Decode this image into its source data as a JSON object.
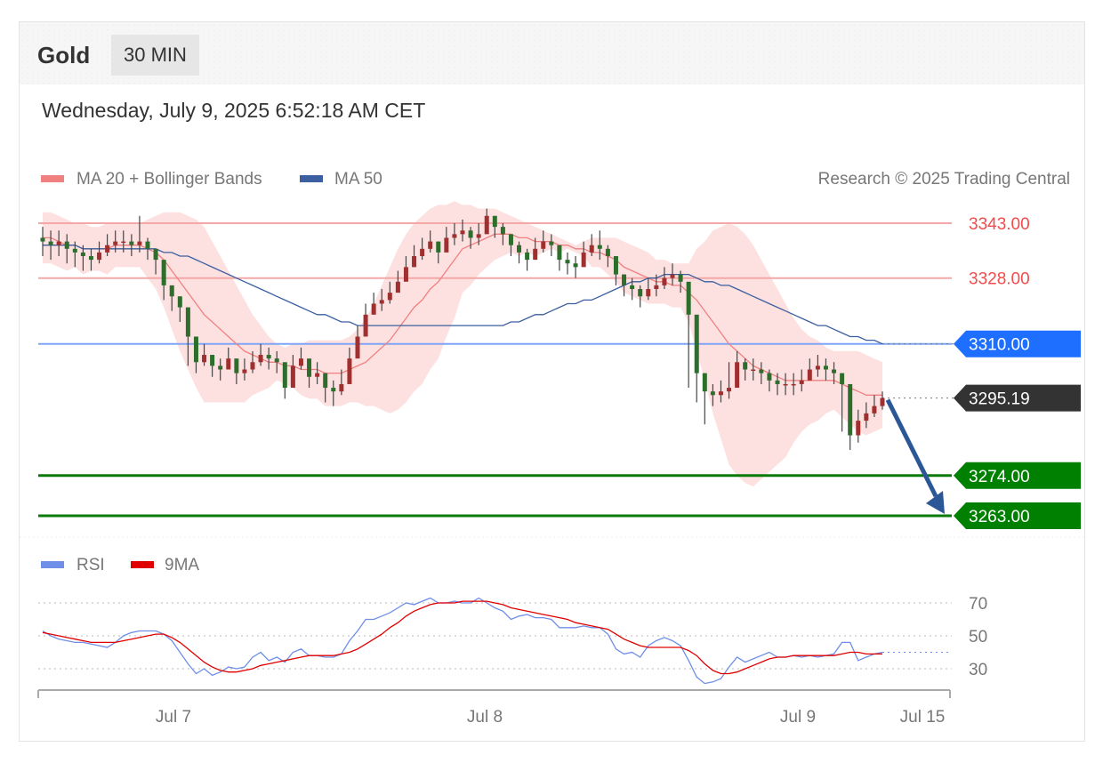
{
  "header": {
    "instrument": "Gold",
    "timeframe": "30 MIN",
    "timestamp": "Wednesday, July 9, 2025 6:52:18 AM CET"
  },
  "legend": {
    "ma20_label": "MA 20 + Bollinger Bands",
    "ma50_label": "MA 50",
    "copyright": "Research © 2025 Trading Central",
    "rsi_label": "RSI",
    "rsi_ma_label": "9MA",
    "colors": {
      "ma20": "#f08080",
      "ma50": "#3b5fa0",
      "rsi": "#6f8ee8",
      "rsi_ma": "#e00000"
    }
  },
  "chart_data": [
    {
      "type": "candlestick",
      "title": "",
      "price_range": [
        3255,
        3360
      ],
      "x_ticks": [
        "Jul 7",
        "Jul 8",
        "Jul 9",
        "Jul 15"
      ],
      "current_price": {
        "value": "3295.19",
        "color": "#333333"
      },
      "levels": [
        {
          "value": "3343.00",
          "kind": "resistance",
          "color": "#f24b4b",
          "line": "#f4a7a7"
        },
        {
          "value": "3328.00",
          "kind": "resistance",
          "color": "#f24b4b",
          "line": "#f4a7a7"
        },
        {
          "value": "3310.00",
          "kind": "pivot",
          "color": "#1e6fff",
          "line": "#7ea4f5"
        },
        {
          "value": "3274.00",
          "kind": "support",
          "color": "#008000",
          "line": "#0a7a0a"
        },
        {
          "value": "3263.00",
          "kind": "support",
          "color": "#008000",
          "line": "#0a7a0a"
        }
      ],
      "closes": [
        3338,
        3337,
        3338,
        3336,
        3335,
        3334,
        3333,
        3335,
        3337,
        3338,
        3338,
        3337,
        3338,
        3336,
        3333,
        3326,
        3323,
        3320,
        3312,
        3305,
        3307,
        3304,
        3303,
        3306,
        3302,
        3303,
        3305,
        3307,
        3306,
        3305,
        3298,
        3304,
        3306,
        3301,
        3302,
        3298,
        3297,
        3299,
        3306,
        3312,
        3318,
        3321,
        3322,
        3324,
        3327,
        3331,
        3334,
        3336,
        3338,
        3335,
        3339,
        3340,
        3341,
        3339,
        3340,
        3345,
        3342,
        3340,
        3337,
        3335,
        3333,
        3336,
        3338,
        3337,
        3333,
        3332,
        3331,
        3335,
        3337,
        3336,
        3334,
        3329,
        3326,
        3325,
        3323,
        3325,
        3326,
        3328,
        3329,
        3327,
        3318,
        3302,
        3297,
        3296,
        3297,
        3298,
        3305,
        3303,
        3303,
        3302,
        3300,
        3299,
        3299,
        3299,
        3300,
        3303,
        3304,
        3303,
        3302,
        3299,
        3285,
        3289,
        3291,
        3293,
        3295.19
      ],
      "highs": [
        3342,
        3341,
        3341,
        3340,
        3338,
        3337,
        3336,
        3338,
        3340,
        3341,
        3341,
        3340,
        3345,
        3339,
        3336,
        3330,
        3326,
        3323,
        3316,
        3309,
        3310,
        3307,
        3306,
        3309,
        3306,
        3306,
        3308,
        3310,
        3309,
        3308,
        3302,
        3307,
        3309,
        3305,
        3305,
        3302,
        3300,
        3303,
        3309,
        3315,
        3321,
        3324,
        3325,
        3327,
        3330,
        3334,
        3337,
        3339,
        3341,
        3338,
        3342,
        3343,
        3344,
        3342,
        3343,
        3347,
        3345,
        3343,
        3340,
        3338,
        3336,
        3339,
        3341,
        3340,
        3336,
        3335,
        3334,
        3338,
        3340,
        3341,
        3337,
        3332,
        3329,
        3328,
        3326,
        3328,
        3329,
        3331,
        3332,
        3330,
        3321,
        3305,
        3300,
        3299,
        3300,
        3305,
        3308,
        3306,
        3306,
        3305,
        3303,
        3302,
        3302,
        3302,
        3303,
        3306,
        3307,
        3306,
        3305,
        3302,
        3289,
        3292,
        3294,
        3296,
        3297
      ],
      "lows": [
        3334,
        3333,
        3334,
        3332,
        3331,
        3330,
        3330,
        3332,
        3334,
        3335,
        3335,
        3334,
        3335,
        3333,
        3329,
        3322,
        3319,
        3316,
        3304,
        3302,
        3304,
        3301,
        3300,
        3303,
        3299,
        3300,
        3302,
        3304,
        3303,
        3302,
        3295,
        3301,
        3303,
        3298,
        3299,
        3294,
        3293,
        3296,
        3303,
        3309,
        3315,
        3318,
        3319,
        3321,
        3324,
        3328,
        3331,
        3333,
        3335,
        3332,
        3336,
        3337,
        3338,
        3336,
        3337,
        3342,
        3339,
        3337,
        3334,
        3332,
        3330,
        3333,
        3335,
        3334,
        3330,
        3329,
        3328,
        3332,
        3334,
        3333,
        3331,
        3326,
        3323,
        3322,
        3320,
        3322,
        3323,
        3325,
        3326,
        3324,
        3298,
        3294,
        3288,
        3293,
        3294,
        3295,
        3302,
        3300,
        3300,
        3299,
        3297,
        3296,
        3296,
        3296,
        3297,
        3300,
        3301,
        3300,
        3299,
        3286,
        3281,
        3283,
        3287,
        3290,
        3292
      ],
      "ma20": [
        3339,
        3339,
        3338,
        3337,
        3337,
        3336,
        3336,
        3336,
        3336,
        3337,
        3337,
        3337,
        3337,
        3336,
        3335,
        3333,
        3330,
        3327,
        3324,
        3321,
        3318,
        3316,
        3314,
        3312,
        3310,
        3308,
        3307,
        3306,
        3305,
        3305,
        3304,
        3304,
        3303,
        3303,
        3303,
        3302,
        3302,
        3302,
        3303,
        3304,
        3305,
        3307,
        3309,
        3311,
        3314,
        3317,
        3320,
        3322,
        3325,
        3327,
        3330,
        3333,
        3336,
        3337,
        3338,
        3339,
        3340,
        3340,
        3340,
        3339,
        3339,
        3338,
        3338,
        3338,
        3337,
        3337,
        3336,
        3336,
        3335,
        3335,
        3334,
        3333,
        3331,
        3330,
        3329,
        3328,
        3327,
        3327,
        3326,
        3326,
        3324,
        3322,
        3319,
        3316,
        3313,
        3310,
        3308,
        3306,
        3304,
        3303,
        3302,
        3301,
        3300,
        3300,
        3300,
        3300,
        3300,
        3300,
        3300,
        3299,
        3298,
        3297,
        3296,
        3296,
        3296
      ],
      "bb_upper": [
        3346,
        3346,
        3345,
        3344,
        3343,
        3343,
        3342,
        3342,
        3343,
        3343,
        3343,
        3343,
        3343,
        3344,
        3345,
        3346,
        3346,
        3346,
        3345,
        3344,
        3342,
        3338,
        3334,
        3330,
        3326,
        3322,
        3318,
        3315,
        3312,
        3310,
        3309,
        3310,
        3310,
        3311,
        3311,
        3311,
        3311,
        3311,
        3312,
        3314,
        3317,
        3321,
        3326,
        3331,
        3336,
        3340,
        3343,
        3345,
        3347,
        3348,
        3348,
        3349,
        3348,
        3348,
        3347,
        3347,
        3347,
        3346,
        3345,
        3344,
        3343,
        3342,
        3341,
        3340,
        3339,
        3338,
        3337,
        3338,
        3339,
        3339,
        3339,
        3339,
        3338,
        3337,
        3336,
        3335,
        3333,
        3333,
        3332,
        3332,
        3332,
        3336,
        3338,
        3341,
        3342,
        3343,
        3342,
        3340,
        3337,
        3333,
        3329,
        3325,
        3321,
        3317,
        3314,
        3312,
        3311,
        3309,
        3308,
        3308,
        3308,
        3308,
        3307,
        3306,
        3305
      ],
      "bb_lower": [
        3332,
        3332,
        3331,
        3330,
        3331,
        3329,
        3330,
        3330,
        3329,
        3331,
        3331,
        3331,
        3331,
        3328,
        3325,
        3320,
        3314,
        3308,
        3303,
        3298,
        3294,
        3294,
        3294,
        3294,
        3294,
        3294,
        3296,
        3297,
        3298,
        3300,
        3299,
        3298,
        3296,
        3295,
        3295,
        3293,
        3293,
        3293,
        3294,
        3294,
        3293,
        3293,
        3292,
        3291,
        3292,
        3294,
        3297,
        3299,
        3303,
        3306,
        3312,
        3317,
        3324,
        3326,
        3329,
        3331,
        3333,
        3334,
        3335,
        3334,
        3335,
        3334,
        3335,
        3336,
        3335,
        3336,
        3335,
        3334,
        3331,
        3331,
        3329,
        3327,
        3324,
        3323,
        3322,
        3321,
        3321,
        3321,
        3320,
        3320,
        3316,
        3308,
        3300,
        3291,
        3284,
        3277,
        3274,
        3272,
        3271,
        3273,
        3275,
        3277,
        3279,
        3283,
        3286,
        3288,
        3289,
        3291,
        3292,
        3290,
        3288,
        3286,
        3285,
        3286,
        3287
      ],
      "ma50": [
        3337,
        3337,
        3337,
        3337,
        3337,
        3336,
        3336,
        3336,
        3336,
        3336,
        3336,
        3336,
        3336,
        3336,
        3336,
        3335,
        3335,
        3334,
        3334,
        3333,
        3332,
        3331,
        3330,
        3329,
        3328,
        3327,
        3326,
        3325,
        3324,
        3323,
        3322,
        3321,
        3320,
        3319,
        3318,
        3318,
        3317,
        3316,
        3316,
        3315,
        3315,
        3315,
        3315,
        3315,
        3315,
        3315,
        3315,
        3315,
        3315,
        3315,
        3315,
        3315,
        3315,
        3315,
        3315,
        3315,
        3315,
        3315,
        3316,
        3316,
        3317,
        3318,
        3318,
        3319,
        3320,
        3321,
        3321,
        3322,
        3322,
        3323,
        3324,
        3325,
        3326,
        3327,
        3327,
        3328,
        3328,
        3329,
        3329,
        3329,
        3329,
        3328,
        3327,
        3327,
        3326,
        3326,
        3325,
        3324,
        3323,
        3322,
        3321,
        3320,
        3319,
        3318,
        3317,
        3316,
        3315,
        3315,
        3314,
        3313,
        3312,
        3312,
        3311,
        3311,
        3310
      ]
    },
    {
      "type": "line",
      "title": "",
      "ylim": [
        15,
        75
      ],
      "y_ticks": [
        "70",
        "50",
        "30"
      ],
      "series": [
        {
          "name": "RSI",
          "values": [
            53,
            50,
            48,
            47,
            46,
            46,
            45,
            44,
            43,
            46,
            50,
            52,
            53,
            53,
            53,
            51,
            47,
            40,
            33,
            27,
            30,
            26,
            28,
            31,
            30,
            31,
            37,
            40,
            35,
            37,
            34,
            40,
            42,
            38,
            38,
            37,
            37,
            39,
            47,
            53,
            60,
            60,
            62,
            64,
            67,
            70,
            69,
            71,
            73,
            70,
            70,
            71,
            70,
            70,
            73,
            70,
            67,
            65,
            60,
            62,
            63,
            61,
            61,
            60,
            55,
            55,
            55,
            56,
            55,
            55,
            51,
            42,
            39,
            40,
            37,
            44,
            47,
            49,
            47,
            44,
            35,
            25,
            21,
            22,
            24,
            31,
            37,
            34,
            36,
            38,
            40,
            37,
            37,
            38,
            37,
            38,
            37,
            38,
            39,
            46,
            46,
            35,
            37,
            39,
            40
          ]
        },
        {
          "name": "9MA",
          "values": [
            52,
            51,
            50,
            49,
            48,
            47,
            46,
            46,
            46,
            46,
            47,
            48,
            49,
            50,
            51,
            51,
            49,
            46,
            42,
            38,
            34,
            31,
            29,
            28,
            28,
            29,
            30,
            32,
            33,
            34,
            35,
            36,
            37,
            38,
            38,
            38,
            38,
            39,
            40,
            42,
            45,
            48,
            51,
            55,
            58,
            62,
            65,
            67,
            69,
            70,
            70,
            70,
            71,
            71,
            71,
            71,
            70,
            69,
            67,
            66,
            65,
            64,
            63,
            62,
            61,
            60,
            58,
            57,
            56,
            55,
            54,
            51,
            48,
            46,
            44,
            43,
            43,
            43,
            43,
            43,
            41,
            38,
            33,
            29,
            27,
            27,
            28,
            30,
            32,
            34,
            36,
            37,
            37,
            38,
            38,
            38,
            38,
            38,
            38,
            39,
            40,
            40,
            39,
            39,
            39
          ]
        }
      ]
    }
  ]
}
